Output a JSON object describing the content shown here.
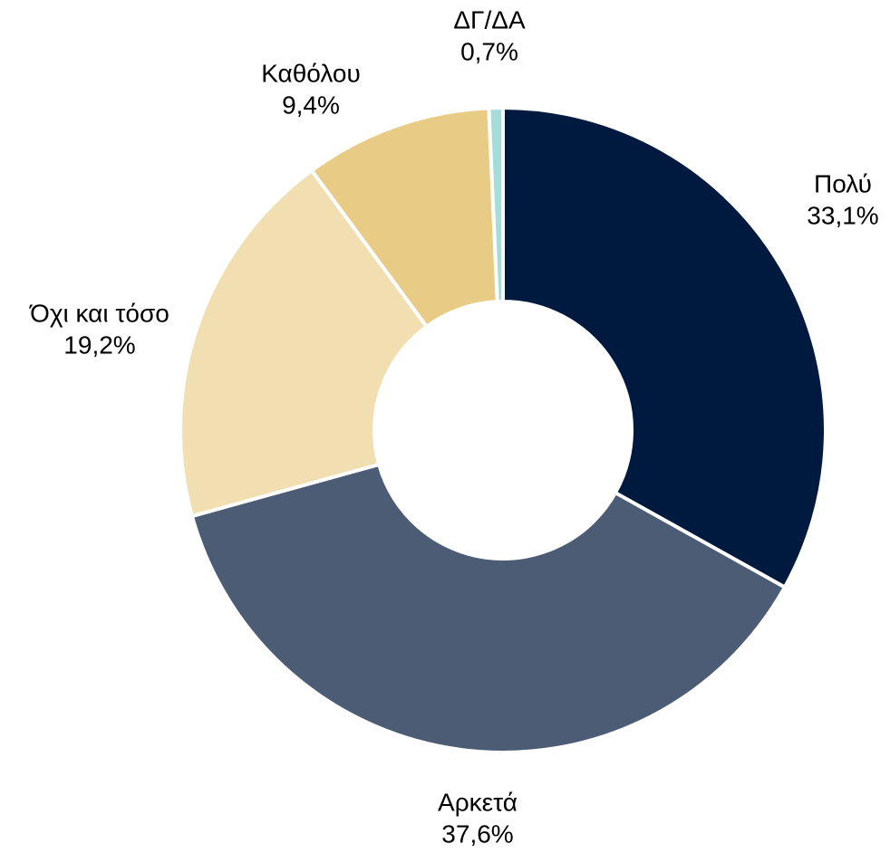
{
  "chart_data": {
    "type": "donut",
    "categories": [
      "Πολύ",
      "Αρκετά",
      "Όχι και τόσο",
      "Καθόλου",
      "ΔΓ/ΔΑ"
    ],
    "values": [
      33.1,
      37.6,
      19.2,
      9.4,
      0.7
    ],
    "value_labels": [
      "33,1%",
      "37,6%",
      "19,2%",
      "9,4%",
      "0,7%"
    ],
    "colors": [
      "#001a3f",
      "#4b5c74",
      "#f2dfb1",
      "#e8cc85",
      "#a8dcd9"
    ]
  }
}
